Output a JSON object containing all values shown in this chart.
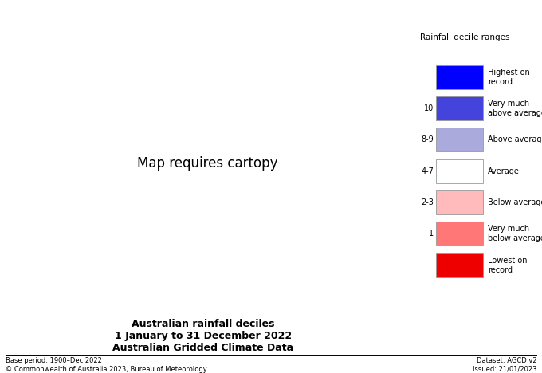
{
  "title_line1": "Australian rainfall deciles",
  "title_line2": "1 January to 31 December 2022",
  "title_line3": "Australian Gridded Climate Data",
  "base_period": "Base period: 1900–Dec 2022",
  "dataset": "Dataset: AGCD v2",
  "copyright": "© Commonwealth of Australia 2023, Bureau of Meteorology",
  "issued": "Issued: 21/01/2023",
  "legend_title": "Rainfall decile ranges",
  "legend_items": [
    {
      "label": "Highest on\nrecord",
      "color": "#0000ff",
      "decile": ""
    },
    {
      "label": "Very much\nabove average",
      "color": "#4444dd",
      "decile": "10"
    },
    {
      "label": "Above average",
      "color": "#aaaadd",
      "decile": "8-9"
    },
    {
      "label": "Average",
      "color": "#ffffff",
      "decile": "4-7"
    },
    {
      "label": "Below average",
      "color": "#ffbbbb",
      "decile": "2-3"
    },
    {
      "label": "Very much\nbelow average",
      "color": "#ff7777",
      "decile": "1"
    },
    {
      "label": "Lowest on\nrecord",
      "color": "#ee0000",
      "decile": ""
    }
  ],
  "ocean_color": "#ffffff",
  "background_color": "#ffffff",
  "state_border_color": "#555555",
  "coast_color": "#333333",
  "map_extent": [
    112.0,
    154.0,
    -44.5,
    -10.0
  ],
  "fig_width": 6.8,
  "fig_height": 4.68,
  "dpi": 100
}
